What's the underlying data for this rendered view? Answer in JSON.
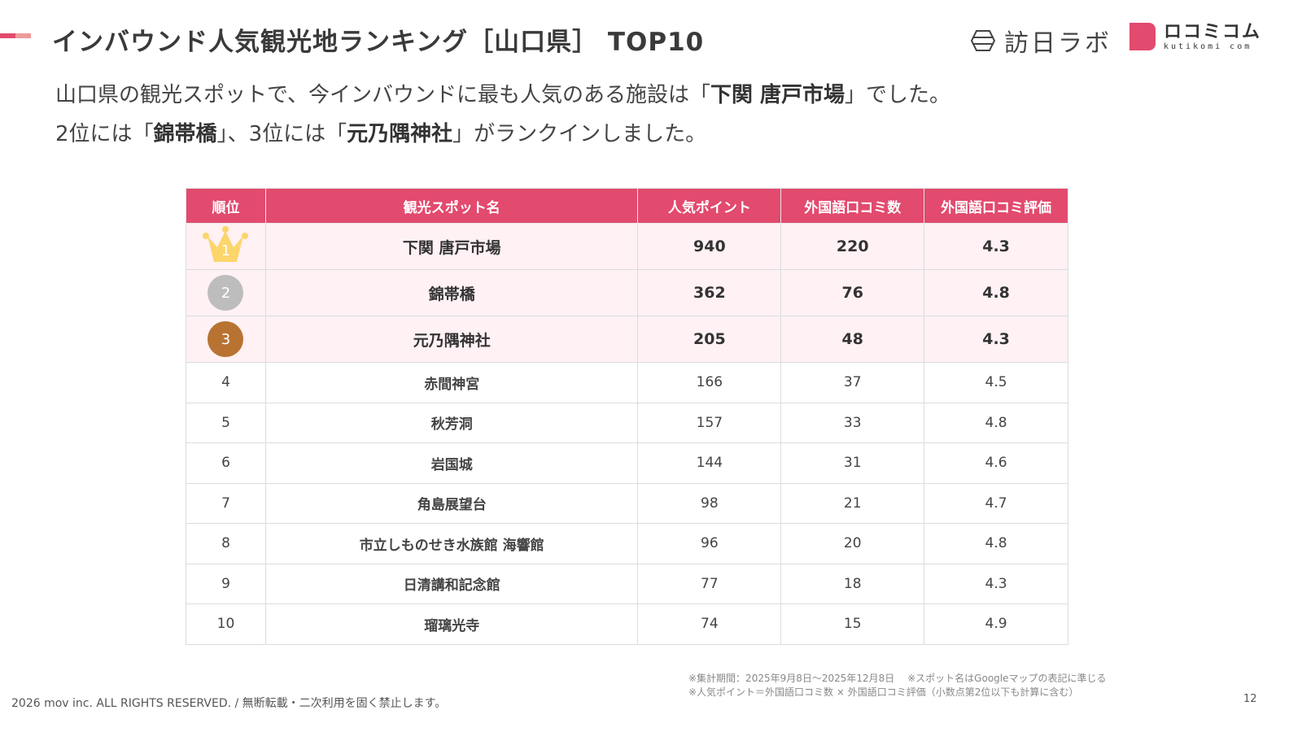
{
  "header": {
    "title": "インバウンド人気観光地ランキング［山口県］ TOP10",
    "logo1": "訪日ラボ",
    "logo2_main": "ロコミコム",
    "logo2_sub": "kutikomi com"
  },
  "intro": {
    "l1a": "山口県の観光スポットで、今インバウンドに最も人気のある施設は「",
    "l1b": "下関 唐戸市場",
    "l1c": "」でした。",
    "l2a": "2位には「",
    "l2b": "錦帯橋",
    "l2c": "」、3位には「",
    "l2d": "元乃隅神社",
    "l2e": "」がランクインしました。"
  },
  "table": {
    "headers": [
      "順位",
      "観光スポット名",
      "人気ポイント",
      "外国語口コミ数",
      "外国語口コミ評価"
    ],
    "rows": [
      {
        "rank": "1",
        "name": "下関 唐戸市場",
        "points": "940",
        "reviews": "220",
        "rating": "4.3"
      },
      {
        "rank": "2",
        "name": "錦帯橋",
        "points": "362",
        "reviews": "76",
        "rating": "4.8"
      },
      {
        "rank": "3",
        "name": "元乃隅神社",
        "points": "205",
        "reviews": "48",
        "rating": "4.3"
      },
      {
        "rank": "4",
        "name": "赤間神宮",
        "points": "166",
        "reviews": "37",
        "rating": "4.5"
      },
      {
        "rank": "5",
        "name": "秋芳洞",
        "points": "157",
        "reviews": "33",
        "rating": "4.8"
      },
      {
        "rank": "6",
        "name": "岩国城",
        "points": "144",
        "reviews": "31",
        "rating": "4.6"
      },
      {
        "rank": "7",
        "name": "角島展望台",
        "points": "98",
        "reviews": "21",
        "rating": "4.7"
      },
      {
        "rank": "8",
        "name": "市立しものせき水族館 海響館",
        "points": "96",
        "reviews": "20",
        "rating": "4.8"
      },
      {
        "rank": "9",
        "name": "日清講和記念館",
        "points": "77",
        "reviews": "18",
        "rating": "4.3"
      },
      {
        "rank": "10",
        "name": "瑠璃光寺",
        "points": "74",
        "reviews": "15",
        "rating": "4.9"
      }
    ]
  },
  "notes": {
    "n1": "※集計期間：2025年9月8日〜2025年12月8日　 ※スポット名はGoogleマップの表記に準じる",
    "n2": "※人気ポイント＝外国語口コミ数 × 外国語口コミ評価（小数点第2位以下も計算に含む）"
  },
  "footer": {
    "copyright": "2026 mov inc. ALL RIGHTS RESERVED. / 無断転載・二次利用を固く禁止します。",
    "page": "12"
  },
  "colors": {
    "accent": "#e24a6e",
    "gold": "#fcd56b",
    "silver": "#bdbdbd",
    "bronze": "#b87333",
    "row_highlight": "#fff1f4"
  }
}
